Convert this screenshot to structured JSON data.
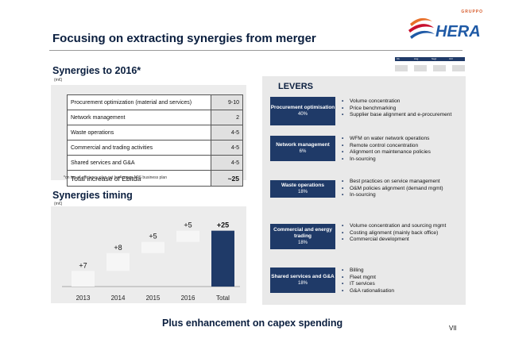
{
  "header": {
    "title": "Focusing on extracting synergies from merger",
    "logo_text": "HERA",
    "logo_sub": "GRUPPO",
    "mini_strip": [
      "Ok",
      "Ang",
      "Segt",
      "Ctrl"
    ]
  },
  "synergies": {
    "title": "Synergies to 2016*",
    "unit": "(m€)",
    "rows": [
      {
        "label": "Procurement optimization (material and services)",
        "value": "9-10"
      },
      {
        "label": "Network management",
        "value": "2"
      },
      {
        "label": "Waste operations",
        "value": "4-5"
      },
      {
        "label": "Commercial and trading activities",
        "value": "4-5"
      },
      {
        "label": "Shared services and G&A",
        "value": "4-5"
      }
    ],
    "total": {
      "label": "Total increase of Ebitda",
      "value": "~25"
    },
    "footnote": "*on top of efficiency plan set by Acegas APS business plan"
  },
  "timing": {
    "title": "Synergies timing",
    "unit": "(m€)"
  },
  "chart_data": {
    "type": "bar",
    "subtype": "waterfall",
    "title": "Synergies timing",
    "ylabel": "m€",
    "categories": [
      "2013",
      "2014",
      "2015",
      "2016",
      "Total"
    ],
    "values": [
      7,
      8,
      5,
      5,
      25
    ],
    "labels": [
      "+7",
      "+8",
      "+5",
      "+5",
      "+25"
    ],
    "ylim": [
      0,
      27
    ],
    "colors": {
      "increment": "#f6f6f6",
      "total": "#1f3a68"
    }
  },
  "levers": {
    "title": "LEVERS",
    "items": [
      {
        "name": "Procurement optimisation",
        "pct": "40%",
        "bullets": [
          "Volume concentration",
          "Price benchmarking",
          "Supplier base alignment and e-procurement"
        ]
      },
      {
        "name": "Network management",
        "pct": "6%",
        "bullets": [
          "WFM on water network operations",
          "Remote control concentration",
          "Alignment on maintenance policies",
          "In-sourcing"
        ]
      },
      {
        "name": "Waste operations",
        "pct": "18%",
        "bullets": [
          "Best practices on service management",
          "O&M policies alignment (demand mgmt)",
          "In-sourcing"
        ]
      },
      {
        "name": "Commercial and energy trading",
        "pct": "18%",
        "bullets": [
          "Volume concentration and sourcing mgmt",
          "Costing alignment (mainly back office)",
          "Commercial development"
        ]
      },
      {
        "name": "Shared services and G&A",
        "pct": "18%",
        "bullets": [
          "Billing",
          "Fleet mgmt",
          "IT services",
          "G&A rationalisation"
        ]
      }
    ]
  },
  "footer": {
    "text": "Plus enhancement on capex spending",
    "page": "VII"
  },
  "colors": {
    "navy": "#1f3a68",
    "title": "#0b1f3f",
    "accent_orange": "#e8702a",
    "accent_red": "#c8102e",
    "accent_blue": "#1f5aa6"
  }
}
